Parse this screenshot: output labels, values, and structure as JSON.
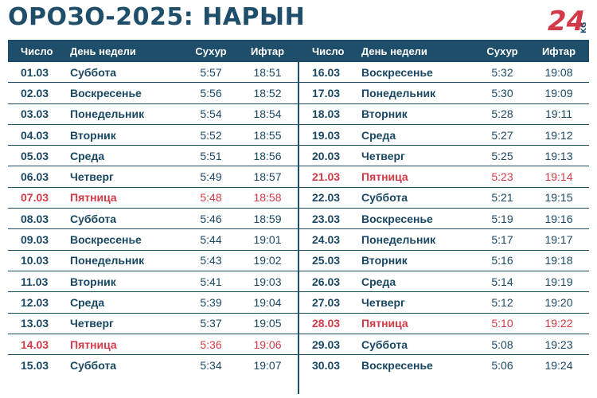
{
  "title": "ОРОЗО-2025: НАРЫН",
  "logo": {
    "main": "24",
    "sub": "KG",
    "color": "#d23a47"
  },
  "columns": {
    "date": "Число",
    "day": "День недели",
    "suhur": "Сухур",
    "iftar": "Ифтар"
  },
  "colors": {
    "header": "#1f4e6a",
    "text": "#1a4864",
    "friday": "#d23a47"
  },
  "left_rows": [
    {
      "date": "01.03",
      "day": "Суббота",
      "suhur": "5:57",
      "iftar": "18:51",
      "friday": false
    },
    {
      "date": "02.03",
      "day": "Воскресенье",
      "suhur": "5:56",
      "iftar": "18:52",
      "friday": false
    },
    {
      "date": "03.03",
      "day": "Понедельник",
      "suhur": "5:54",
      "iftar": "18:54",
      "friday": false
    },
    {
      "date": "04.03",
      "day": "Вторник",
      "suhur": "5:52",
      "iftar": "18:55",
      "friday": false
    },
    {
      "date": "05.03",
      "day": "Среда",
      "suhur": "5:51",
      "iftar": "18:56",
      "friday": false
    },
    {
      "date": "06.03",
      "day": "Четверг",
      "suhur": "5:49",
      "iftar": "18:57",
      "friday": false
    },
    {
      "date": "07.03",
      "day": "Пятница",
      "suhur": "5:48",
      "iftar": "18:58",
      "friday": true
    },
    {
      "date": "08.03",
      "day": "Суббота",
      "suhur": "5:46",
      "iftar": "18:59",
      "friday": false
    },
    {
      "date": "09.03",
      "day": "Воскресенье",
      "suhur": "5:44",
      "iftar": "19:01",
      "friday": false
    },
    {
      "date": "10.03",
      "day": "Понедельник",
      "suhur": "5:43",
      "iftar": "19:02",
      "friday": false
    },
    {
      "date": "11.03",
      "day": "Вторник",
      "suhur": "5:41",
      "iftar": "19:03",
      "friday": false
    },
    {
      "date": "12.03",
      "day": "Среда",
      "suhur": "5:39",
      "iftar": "19:04",
      "friday": false
    },
    {
      "date": "13.03",
      "day": "Четверг",
      "suhur": "5:37",
      "iftar": "19:05",
      "friday": false
    },
    {
      "date": "14.03",
      "day": "Пятница",
      "suhur": "5:36",
      "iftar": "19:06",
      "friday": true
    },
    {
      "date": "15.03",
      "day": "Суббота",
      "suhur": "5:34",
      "iftar": "19:07",
      "friday": false
    }
  ],
  "right_rows": [
    {
      "date": "16.03",
      "day": "Воскресенье",
      "suhur": "5:32",
      "iftar": "19:08",
      "friday": false
    },
    {
      "date": "17.03",
      "day": "Понедельник",
      "suhur": "5:30",
      "iftar": "19:09",
      "friday": false
    },
    {
      "date": "18.03",
      "day": "Вторник",
      "suhur": "5:28",
      "iftar": "19:11",
      "friday": false
    },
    {
      "date": "19.03",
      "day": "Среда",
      "suhur": "5:27",
      "iftar": "19:12",
      "friday": false
    },
    {
      "date": "20.03",
      "day": "Четверг",
      "suhur": "5:25",
      "iftar": "19:13",
      "friday": false
    },
    {
      "date": "21.03",
      "day": "Пятница",
      "suhur": "5:23",
      "iftar": "19:14",
      "friday": true
    },
    {
      "date": "22.03",
      "day": "Суббота",
      "suhur": "5:21",
      "iftar": "19:15",
      "friday": false
    },
    {
      "date": "23.03",
      "day": "Воскресенье",
      "suhur": "5:19",
      "iftar": "19:16",
      "friday": false
    },
    {
      "date": "24.03",
      "day": "Понедельник",
      "suhur": "5:17",
      "iftar": "19:17",
      "friday": false
    },
    {
      "date": "25.03",
      "day": "Вторник",
      "suhur": "5:16",
      "iftar": "19:18",
      "friday": false
    },
    {
      "date": "26.03",
      "day": "Среда",
      "suhur": "5:14",
      "iftar": "19:19",
      "friday": false
    },
    {
      "date": "27.03",
      "day": "Четверг",
      "suhur": "5:12",
      "iftar": "19:20",
      "friday": false
    },
    {
      "date": "28.03",
      "day": "Пятница",
      "suhur": "5:10",
      "iftar": "19:22",
      "friday": true
    },
    {
      "date": "29.03",
      "day": "Суббота",
      "suhur": "5:08",
      "iftar": "19:23",
      "friday": false
    },
    {
      "date": "30.03",
      "day": "Воскресенье",
      "suhur": "5:06",
      "iftar": "19:24",
      "friday": false
    }
  ]
}
